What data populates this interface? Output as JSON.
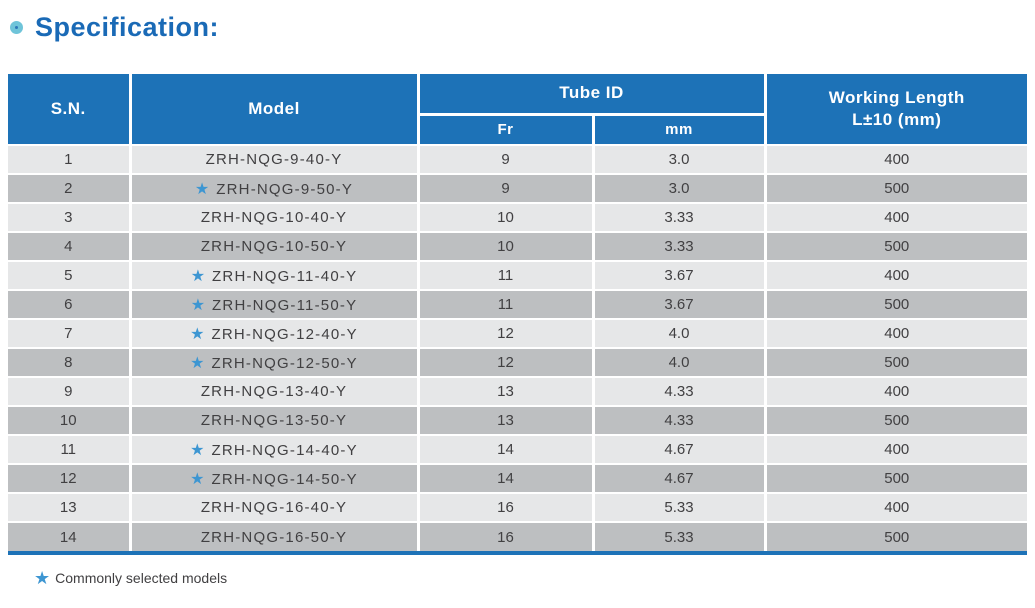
{
  "page": {
    "title": "Specification:"
  },
  "colors": {
    "header_blue": "#1d72b7",
    "title_blue": "#1a6ab6",
    "bullet_ring_blue": "#6fc4d9",
    "bullet_core_blue": "#2d77b8",
    "row_light_gray": "#e6e7e8",
    "row_dark_gray": "#bdbfc1",
    "star_blue": "#3d96d2",
    "body_text": "#414042"
  },
  "table": {
    "headers": {
      "sn": "S.N.",
      "model": "Model",
      "tube_id": "Tube ID",
      "fr": "Fr",
      "mm": "mm",
      "working_length_line1": "Working Length",
      "working_length_line2": "L±10 (mm)"
    },
    "rows": [
      {
        "sn": "1",
        "star": false,
        "model": "ZRH-NQG-9-40-Y",
        "fr": "9",
        "mm": "3.0",
        "working_length": "400"
      },
      {
        "sn": "2",
        "star": true,
        "model": "ZRH-NQG-9-50-Y",
        "fr": "9",
        "mm": "3.0",
        "working_length": "500"
      },
      {
        "sn": "3",
        "star": false,
        "model": "ZRH-NQG-10-40-Y",
        "fr": "10",
        "mm": "3.33",
        "working_length": "400"
      },
      {
        "sn": "4",
        "star": false,
        "model": "ZRH-NQG-10-50-Y",
        "fr": "10",
        "mm": "3.33",
        "working_length": "500"
      },
      {
        "sn": "5",
        "star": true,
        "model": "ZRH-NQG-11-40-Y",
        "fr": "11",
        "mm": "3.67",
        "working_length": "400"
      },
      {
        "sn": "6",
        "star": true,
        "model": "ZRH-NQG-11-50-Y",
        "fr": "11",
        "mm": "3.67",
        "working_length": "500"
      },
      {
        "sn": "7",
        "star": true,
        "model": "ZRH-NQG-12-40-Y",
        "fr": "12",
        "mm": "4.0",
        "working_length": "400"
      },
      {
        "sn": "8",
        "star": true,
        "model": "ZRH-NQG-12-50-Y",
        "fr": "12",
        "mm": "4.0",
        "working_length": "500"
      },
      {
        "sn": "9",
        "star": false,
        "model": "ZRH-NQG-13-40-Y",
        "fr": "13",
        "mm": "4.33",
        "working_length": "400"
      },
      {
        "sn": "10",
        "star": false,
        "model": "ZRH-NQG-13-50-Y",
        "fr": "13",
        "mm": "4.33",
        "working_length": "500"
      },
      {
        "sn": "11",
        "star": true,
        "model": "ZRH-NQG-14-40-Y",
        "fr": "14",
        "mm": "4.67",
        "working_length": "400"
      },
      {
        "sn": "12",
        "star": true,
        "model": "ZRH-NQG-14-50-Y",
        "fr": "14",
        "mm": "4.67",
        "working_length": "500"
      },
      {
        "sn": "13",
        "star": false,
        "model": "ZRH-NQG-16-40-Y",
        "fr": "16",
        "mm": "5.33",
        "working_length": "400"
      },
      {
        "sn": "14",
        "star": false,
        "model": "ZRH-NQG-16-50-Y",
        "fr": "16",
        "mm": "5.33",
        "working_length": "500"
      }
    ]
  },
  "footer": {
    "star_icon": "★",
    "note": "Commonly selected models"
  }
}
